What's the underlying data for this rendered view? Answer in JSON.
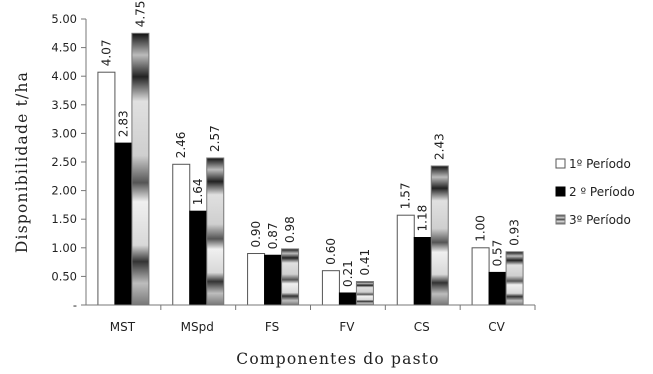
{
  "chart_data": {
    "type": "bar",
    "title": "",
    "xlabel": "Componentes do pasto",
    "ylabel": "Disponibilidade  t/ha",
    "categories": [
      "MST",
      "MSpd",
      "FS",
      "FV",
      "CS",
      "CV"
    ],
    "series": [
      {
        "name": "1º Período",
        "values": [
          4.07,
          2.46,
          0.9,
          0.6,
          1.57,
          1.0
        ],
        "labels": [
          "4.07",
          "2.46",
          "0.90",
          "0.60",
          "1.57",
          "1.00"
        ],
        "pattern": "white"
      },
      {
        "name": "2 º Período",
        "values": [
          2.83,
          1.64,
          0.87,
          0.21,
          1.18,
          0.57
        ],
        "labels": [
          "2.83",
          "1.64",
          "0.87",
          "0.21",
          "1.18",
          "0.57"
        ],
        "pattern": "black"
      },
      {
        "name": "3º Período",
        "values": [
          4.75,
          2.57,
          0.98,
          0.41,
          2.43,
          0.93
        ],
        "labels": [
          "4.75",
          "2.57",
          "0.98",
          "0.41",
          "2.43",
          "0.93"
        ],
        "pattern": "gradient"
      }
    ],
    "ylim": [
      0,
      5
    ],
    "yticks": [
      "-",
      "0.50",
      "1.00",
      "1.50",
      "2.00",
      "2.50",
      "3.00",
      "3.50",
      "4.00",
      "4.50",
      "5.00"
    ],
    "grid": false,
    "legend_position": "right"
  }
}
